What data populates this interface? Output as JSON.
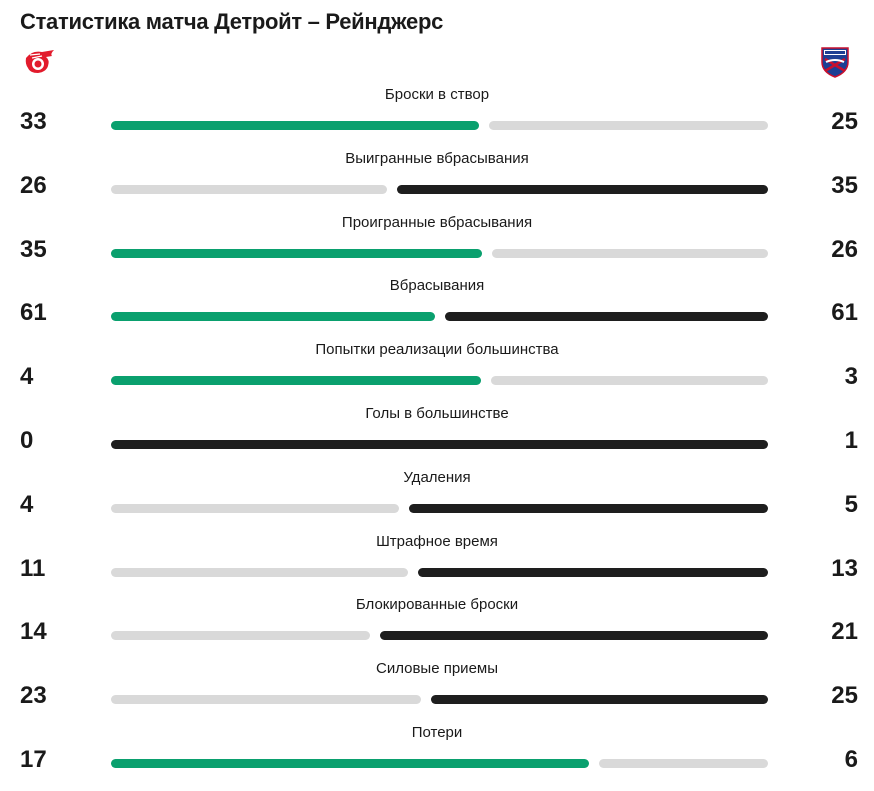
{
  "header": {
    "title": "Статистика матча Детройт – Рейнджерс"
  },
  "teams": {
    "home": {
      "logo_icon": "detroit-red-wings-logo-icon"
    },
    "away": {
      "logo_icon": "new-york-rangers-logo-icon"
    }
  },
  "colors": {
    "winner_home": "#0aa06e",
    "winner_away": "#1e1e1e",
    "loser": "#d9d9d9"
  },
  "stats": [
    {
      "label": "Броски в створ",
      "home": "33",
      "away": "25",
      "leader": "home"
    },
    {
      "label": "Выигранные вбрасывания",
      "home": "26",
      "away": "35",
      "leader": "away"
    },
    {
      "label": "Проигранные вбрасывания",
      "home": "35",
      "away": "26",
      "leader": "home"
    },
    {
      "label": "Вбрасывания",
      "home": "61",
      "away": "61",
      "leader": "both"
    },
    {
      "label": "Попытки реализации большинства",
      "home": "4",
      "away": "3",
      "leader": "home"
    },
    {
      "label": "Голы в большинстве",
      "home": "0",
      "away": "1",
      "leader": "away"
    },
    {
      "label": "Удаления",
      "home": "4",
      "away": "5",
      "leader": "away"
    },
    {
      "label": "Штрафное время",
      "home": "11",
      "away": "13",
      "leader": "away"
    },
    {
      "label": "Блокированные броски",
      "home": "14",
      "away": "21",
      "leader": "away"
    },
    {
      "label": "Силовые приемы",
      "home": "23",
      "away": "25",
      "leader": "away"
    },
    {
      "label": "Потери",
      "home": "17",
      "away": "6",
      "leader": "home"
    }
  ]
}
